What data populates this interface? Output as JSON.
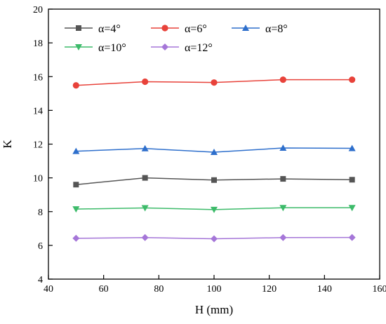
{
  "chart_data": {
    "type": "line",
    "xlabel": "H (mm)",
    "ylabel": "K",
    "xlim": [
      40,
      160
    ],
    "ylim": [
      4,
      20
    ],
    "xticks": [
      40,
      60,
      80,
      100,
      120,
      140,
      160
    ],
    "yticks": [
      4,
      6,
      8,
      10,
      12,
      14,
      16,
      18,
      20
    ],
    "x": [
      50,
      75,
      100,
      125,
      150
    ],
    "grid": false,
    "legend_position": "top",
    "series": [
      {
        "name": "α=4°",
        "color": "#555555",
        "marker": "square",
        "values": [
          9.6,
          10.0,
          9.87,
          9.94,
          9.89
        ]
      },
      {
        "name": "α=6°",
        "color": "#e8423a",
        "marker": "circle",
        "values": [
          15.48,
          15.7,
          15.65,
          15.82,
          15.82
        ]
      },
      {
        "name": "α=8°",
        "color": "#2e6fcc",
        "marker": "triangle-up",
        "values": [
          11.58,
          11.74,
          11.52,
          11.77,
          11.75
        ]
      },
      {
        "name": "α=10°",
        "color": "#3dbb6a",
        "marker": "triangle-down",
        "values": [
          8.15,
          8.22,
          8.12,
          8.23,
          8.23
        ]
      },
      {
        "name": "α=12°",
        "color": "#a576d8",
        "marker": "diamond",
        "values": [
          6.42,
          6.46,
          6.39,
          6.46,
          6.47
        ]
      }
    ]
  }
}
